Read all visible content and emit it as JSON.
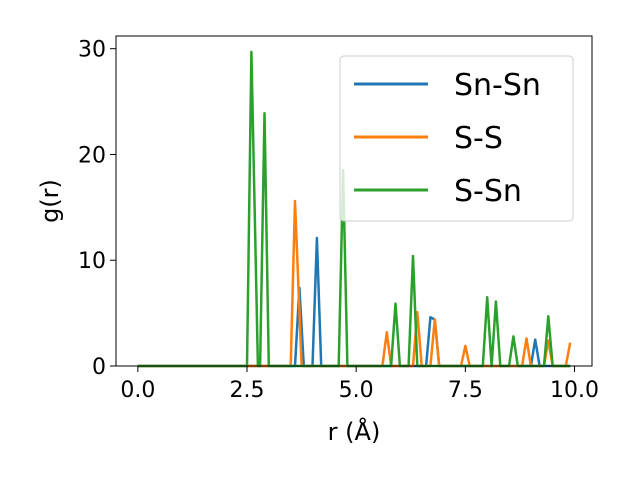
{
  "chart_data": {
    "type": "line",
    "xlabel": "r (Å)",
    "ylabel": "g(r)",
    "xlim": [
      -0.5,
      10.4
    ],
    "ylim": [
      0,
      31.2
    ],
    "xticks": [
      0.0,
      2.5,
      5.0,
      7.5,
      10.0
    ],
    "xtick_labels": [
      "0.0",
      "2.5",
      "5.0",
      "7.5",
      "10.0"
    ],
    "yticks": [
      0,
      10,
      20,
      30
    ],
    "ytick_labels": [
      "0",
      "10",
      "20",
      "30"
    ],
    "grid": false,
    "legend_position": "top-right",
    "series": [
      {
        "name": "Sn-Sn",
        "color": "#1f77b4",
        "points": [
          [
            0.0,
            0
          ],
          [
            3.6,
            0
          ],
          [
            3.7,
            7.4
          ],
          [
            3.8,
            0
          ],
          [
            4.0,
            0
          ],
          [
            4.1,
            12.1
          ],
          [
            4.2,
            0
          ],
          [
            6.6,
            0
          ],
          [
            6.7,
            4.6
          ],
          [
            6.8,
            4.4
          ],
          [
            6.9,
            0
          ],
          [
            9.0,
            0
          ],
          [
            9.1,
            2.5
          ],
          [
            9.2,
            0
          ],
          [
            9.9,
            0
          ]
        ]
      },
      {
        "name": "S-S",
        "color": "#ff7f0e",
        "points": [
          [
            0.0,
            0
          ],
          [
            3.5,
            0
          ],
          [
            3.6,
            15.6
          ],
          [
            3.75,
            0
          ],
          [
            5.6,
            0
          ],
          [
            5.7,
            3.2
          ],
          [
            5.8,
            0
          ],
          [
            6.3,
            0
          ],
          [
            6.4,
            5.1
          ],
          [
            6.5,
            0
          ],
          [
            6.7,
            0
          ],
          [
            6.8,
            4.4
          ],
          [
            6.9,
            0
          ],
          [
            7.4,
            0
          ],
          [
            7.5,
            1.9
          ],
          [
            7.6,
            0
          ],
          [
            8.8,
            0
          ],
          [
            8.9,
            2.6
          ],
          [
            9.0,
            0
          ],
          [
            9.3,
            0
          ],
          [
            9.4,
            2.4
          ],
          [
            9.5,
            0
          ],
          [
            9.8,
            0
          ],
          [
            9.9,
            2.2
          ]
        ]
      },
      {
        "name": "S-Sn",
        "color": "#2ca02c",
        "points": [
          [
            0.0,
            0
          ],
          [
            2.5,
            0
          ],
          [
            2.6,
            29.7
          ],
          [
            2.75,
            0
          ],
          [
            2.8,
            0
          ],
          [
            2.9,
            23.9
          ],
          [
            3.0,
            0
          ],
          [
            4.6,
            0
          ],
          [
            4.7,
            18.5
          ],
          [
            4.8,
            0
          ],
          [
            5.8,
            0
          ],
          [
            5.9,
            5.9
          ],
          [
            6.0,
            0
          ],
          [
            6.2,
            0
          ],
          [
            6.3,
            10.4
          ],
          [
            6.4,
            0
          ],
          [
            7.9,
            0
          ],
          [
            8.0,
            6.5
          ],
          [
            8.1,
            0
          ],
          [
            8.2,
            6.1
          ],
          [
            8.3,
            0
          ],
          [
            8.5,
            0
          ],
          [
            8.6,
            2.8
          ],
          [
            8.7,
            0
          ],
          [
            9.3,
            0
          ],
          [
            9.4,
            4.7
          ],
          [
            9.5,
            0
          ],
          [
            9.9,
            0
          ]
        ]
      }
    ]
  }
}
